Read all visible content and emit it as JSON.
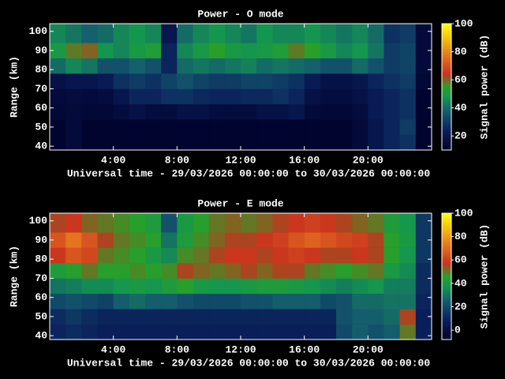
{
  "chart_data": [
    {
      "type": "heatmap",
      "title": "Power - O mode",
      "xlabel": "Universal time - 29/03/2026 00:00:00 to 30/03/2026 00:00:00",
      "ylabel": "Range (km)",
      "colorbar_label": "Signal power (dB)",
      "x_bins": [
        0,
        1,
        2,
        3,
        4,
        5,
        6,
        7,
        8,
        9,
        10,
        11,
        12,
        13,
        14,
        15,
        16,
        17,
        18,
        19,
        20,
        21,
        22,
        23,
        24
      ],
      "y_bins": [
        38,
        46,
        54,
        62,
        70,
        78,
        86,
        94,
        104
      ],
      "z": [
        [
          12,
          15,
          12,
          12,
          12,
          12,
          12,
          12,
          12,
          12,
          12,
          12,
          12,
          12,
          12,
          12,
          12,
          12,
          12,
          15,
          20,
          25,
          28,
          12
        ],
        [
          12,
          15,
          12,
          12,
          12,
          12,
          12,
          12,
          12,
          12,
          12,
          12,
          12,
          12,
          12,
          12,
          12,
          12,
          12,
          15,
          20,
          25,
          30,
          12
        ],
        [
          14,
          15,
          14,
          14,
          16,
          18,
          16,
          16,
          18,
          18,
          16,
          16,
          16,
          18,
          18,
          20,
          15,
          14,
          14,
          16,
          22,
          25,
          28,
          12
        ],
        [
          15,
          16,
          15,
          16,
          20,
          25,
          25,
          28,
          28,
          26,
          25,
          25,
          26,
          26,
          28,
          25,
          18,
          16,
          16,
          18,
          22,
          25,
          28,
          12
        ],
        [
          18,
          20,
          20,
          22,
          28,
          30,
          28,
          32,
          35,
          32,
          30,
          30,
          32,
          32,
          30,
          28,
          22,
          18,
          18,
          20,
          25,
          28,
          30,
          14
        ],
        [
          40,
          45,
          42,
          35,
          35,
          38,
          35,
          25,
          40,
          42,
          40,
          42,
          44,
          40,
          42,
          40,
          38,
          35,
          35,
          40,
          35,
          30,
          32,
          15
        ],
        [
          50,
          58,
          60,
          48,
          45,
          50,
          52,
          25,
          45,
          50,
          55,
          50,
          48,
          50,
          52,
          58,
          55,
          50,
          45,
          48,
          42,
          30,
          32,
          15
        ],
        [
          45,
          42,
          38,
          40,
          45,
          48,
          45,
          20,
          40,
          45,
          48,
          45,
          42,
          48,
          45,
          45,
          48,
          45,
          42,
          45,
          40,
          28,
          30,
          15
        ]
      ],
      "xlim": [
        0,
        24
      ],
      "ylim": [
        38,
        104
      ],
      "xticks": [
        {
          "value": 4,
          "label": "4:00"
        },
        {
          "value": 8,
          "label": "8:00"
        },
        {
          "value": 12,
          "label": "12:00"
        },
        {
          "value": 16,
          "label": "16:00"
        },
        {
          "value": 20,
          "label": "20:00"
        }
      ],
      "yticks": [
        40,
        50,
        60,
        70,
        80,
        90,
        100
      ],
      "clim": [
        10,
        100
      ],
      "cticks": [
        20,
        40,
        60,
        80,
        100
      ]
    },
    {
      "type": "heatmap",
      "title": "Power - E mode",
      "xlabel": "Universal time - 29/03/2026 00:00:00 to 30/03/2026 00:00:00",
      "ylabel": "Range (km)",
      "colorbar_label": "Signal power (dB)",
      "x_bins": [
        0,
        1,
        2,
        3,
        4,
        5,
        6,
        7,
        8,
        9,
        10,
        11,
        12,
        13,
        14,
        15,
        16,
        17,
        18,
        19,
        20,
        21,
        22,
        23,
        24
      ],
      "y_bins": [
        38,
        46,
        54,
        62,
        70,
        78,
        86,
        94,
        104
      ],
      "z": [
        [
          10,
          12,
          10,
          8,
          8,
          8,
          8,
          8,
          8,
          8,
          8,
          8,
          8,
          8,
          8,
          8,
          8,
          8,
          20,
          25,
          22,
          25,
          50,
          8
        ],
        [
          12,
          15,
          12,
          10,
          10,
          10,
          10,
          10,
          10,
          10,
          10,
          10,
          10,
          10,
          10,
          10,
          10,
          10,
          22,
          25,
          25,
          28,
          55,
          8
        ],
        [
          20,
          22,
          20,
          18,
          25,
          28,
          25,
          25,
          22,
          20,
          20,
          20,
          22,
          22,
          25,
          25,
          25,
          20,
          22,
          28,
          28,
          30,
          30,
          10
        ],
        [
          30,
          32,
          35,
          35,
          38,
          40,
          38,
          42,
          45,
          40,
          38,
          38,
          40,
          42,
          42,
          40,
          38,
          35,
          32,
          35,
          38,
          32,
          32,
          12
        ],
        [
          42,
          45,
          50,
          45,
          45,
          48,
          45,
          48,
          55,
          52,
          50,
          52,
          55,
          52,
          55,
          55,
          50,
          48,
          45,
          48,
          50,
          40,
          35,
          12
        ],
        [
          58,
          65,
          62,
          50,
          48,
          45,
          40,
          35,
          48,
          50,
          55,
          58,
          58,
          55,
          58,
          60,
          58,
          55,
          55,
          58,
          55,
          45,
          38,
          15
        ],
        [
          65,
          72,
          65,
          55,
          50,
          48,
          45,
          30,
          42,
          48,
          52,
          55,
          55,
          58,
          60,
          65,
          68,
          65,
          62,
          60,
          55,
          45,
          40,
          15
        ],
        [
          55,
          58,
          52,
          50,
          48,
          45,
          42,
          22,
          40,
          45,
          50,
          52,
          50,
          52,
          55,
          58,
          60,
          58,
          55,
          52,
          50,
          42,
          38,
          15
        ]
      ],
      "xlim": [
        0,
        24
      ],
      "ylim": [
        38,
        104
      ],
      "xticks": [
        {
          "value": 4,
          "label": "4:00"
        },
        {
          "value": 8,
          "label": "8:00"
        },
        {
          "value": 12,
          "label": "12:00"
        },
        {
          "value": 16,
          "label": "16:00"
        },
        {
          "value": 20,
          "label": "20:00"
        }
      ],
      "yticks": [
        40,
        50,
        60,
        70,
        80,
        90,
        100
      ],
      "clim": [
        -8,
        100
      ],
      "cticks": [
        0,
        20,
        40,
        60,
        80,
        100
      ]
    }
  ]
}
